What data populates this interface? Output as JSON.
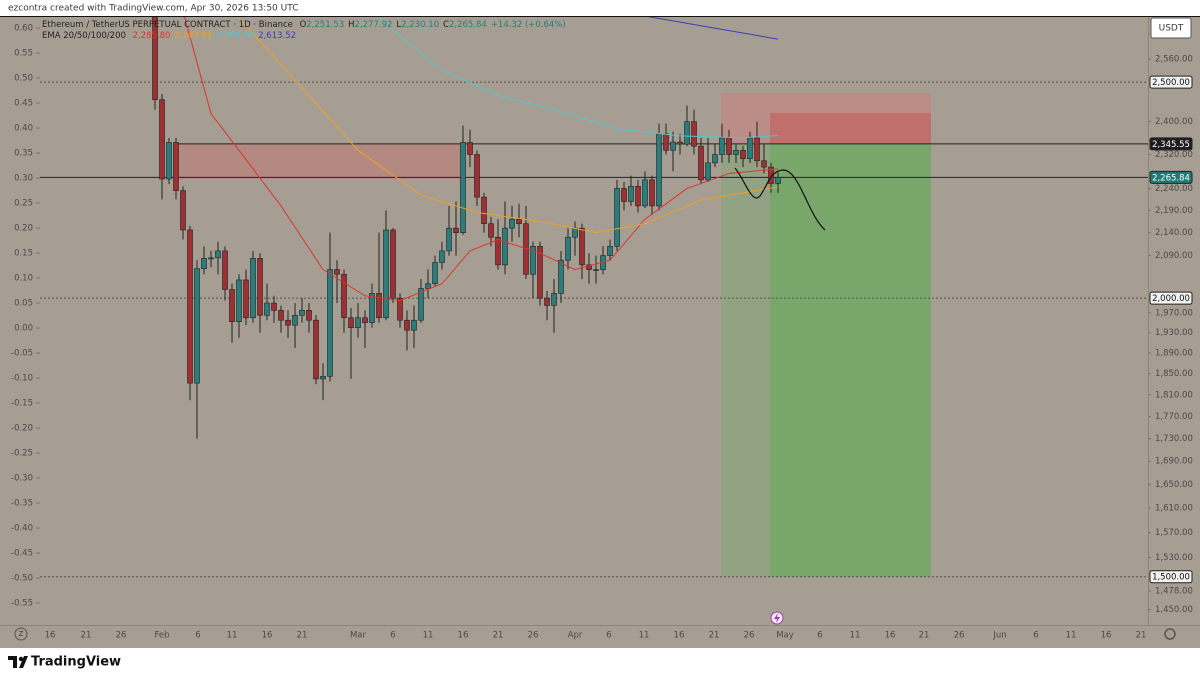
{
  "header": {
    "credit": "ezcontra created with TradingView.com, Apr 30, 2026 13:50 UTC",
    "symbol": "Ethereum / TetherUS PERPETUAL CONTRACT · 1D · Binance",
    "ohlc": [
      {
        "key": "O",
        "label": "2,251.53"
      },
      {
        "key": "H",
        "label": "2,277.92"
      },
      {
        "key": "L",
        "label": "2,230.10"
      },
      {
        "key": "C",
        "label": "2,265.84"
      }
    ],
    "change": "+14.32 (+0.64%)",
    "ema_title": "EMA 20/50/100/200"
  },
  "currency": "USDT",
  "brand": "TradingView",
  "chart_data": {
    "type": "candlestick",
    "up_color": "#2a7d7b",
    "down_color": "#9e2f33",
    "open": [
      2700,
      2455,
      2262,
      2349,
      2235,
      2146,
      1832,
      2062,
      2084,
      2085,
      2100,
      2018,
      1952,
      2038,
      1960,
      2084,
      1965,
      1990,
      1975,
      1955,
      1945,
      1965,
      1975,
      1955,
      1840,
      1845,
      2060,
      2050,
      1960,
      1940,
      1960,
      1950,
      2010,
      1960,
      2146,
      2000,
      1955,
      1935,
      1955,
      2020,
      2030,
      2075,
      2100,
      2150,
      2140,
      2349,
      2320,
      2220,
      2160,
      2130,
      2070,
      2150,
      2170,
      2160,
      2050,
      2110,
      2000,
      1985,
      2010,
      2080,
      2130,
      2150,
      2070,
      2060,
      2060,
      2090,
      2110,
      2240,
      2210,
      2245,
      2200,
      2260,
      2200,
      2370,
      2330,
      2350,
      2345,
      2400,
      2340,
      2260,
      2300,
      2320,
      2360,
      2320,
      2330,
      2310,
      2360,
      2305,
      2290,
      2251.53
    ],
    "high": [
      2720,
      2470,
      2360,
      2360,
      2245,
      2155,
      2080,
      2110,
      2100,
      2120,
      2110,
      2030,
      2050,
      2060,
      2100,
      2095,
      2030,
      2005,
      1985,
      1975,
      1990,
      2000,
      1990,
      1965,
      1870,
      2140,
      2080,
      2060,
      1980,
      1990,
      1975,
      2030,
      2140,
      2190,
      2150,
      2010,
      1975,
      1985,
      2040,
      2060,
      2090,
      2120,
      2200,
      2210,
      2390,
      2380,
      2330,
      2230,
      2175,
      2170,
      2210,
      2200,
      2205,
      2200,
      2120,
      2120,
      2015,
      2040,
      2100,
      2150,
      2165,
      2160,
      2095,
      2090,
      2110,
      2125,
      2260,
      2255,
      2270,
      2260,
      2280,
      2270,
      2395,
      2395,
      2375,
      2370,
      2440,
      2430,
      2360,
      2360,
      2345,
      2395,
      2380,
      2345,
      2340,
      2375,
      2400,
      2345,
      2300,
      2277.92
    ],
    "low": [
      2430,
      2215,
      2250,
      2215,
      2125,
      1800,
      1730,
      2050,
      2065,
      2050,
      1995,
      1910,
      1920,
      1945,
      1950,
      1930,
      1955,
      1950,
      1930,
      1920,
      1900,
      1950,
      1930,
      1830,
      1800,
      1835,
      1990,
      1930,
      1840,
      1920,
      1900,
      1940,
      1950,
      1955,
      1990,
      1940,
      1895,
      1900,
      1950,
      2000,
      2025,
      2060,
      2090,
      2090,
      2135,
      2290,
      2200,
      2140,
      2110,
      2060,
      2050,
      2120,
      2130,
      2040,
      2000,
      1985,
      1955,
      1930,
      1990,
      2060,
      2090,
      2040,
      2030,
      2030,
      2050,
      2080,
      2100,
      2190,
      2200,
      2185,
      2195,
      2180,
      2190,
      2320,
      2280,
      2320,
      2340,
      2320,
      2250,
      2255,
      2290,
      2300,
      2300,
      2300,
      2290,
      2300,
      2290,
      2275,
      2230,
      2230.1
    ],
    "close": [
      2455,
      2262,
      2349,
      2235,
      2146,
      1832,
      2062,
      2084,
      2085,
      2100,
      2018,
      1952,
      2038,
      1960,
      2084,
      1965,
      1990,
      1975,
      1955,
      1945,
      1965,
      1975,
      1955,
      1840,
      1845,
      2060,
      2050,
      1960,
      1940,
      1960,
      1950,
      2010,
      1960,
      2146,
      2000,
      1955,
      1935,
      1955,
      2020,
      2030,
      2075,
      2100,
      2150,
      2140,
      2349,
      2320,
      2220,
      2160,
      2130,
      2070,
      2150,
      2170,
      2160,
      2050,
      2110,
      2000,
      1985,
      2010,
      2080,
      2130,
      2150,
      2070,
      2060,
      2060,
      2090,
      2110,
      2240,
      2210,
      2245,
      2200,
      2260,
      2200,
      2370,
      2330,
      2350,
      2345,
      2400,
      2340,
      2260,
      2300,
      2320,
      2360,
      2320,
      2330,
      2310,
      2360,
      2305,
      2290,
      2251.53,
      2265.84
    ],
    "series": [
      {
        "color": "#d9362f",
        "value_label": "2,285.80",
        "x": [
          4,
          8,
          12,
          18,
          24,
          30,
          35,
          41,
          45,
          49,
          55,
          60,
          65,
          70,
          76,
          82,
          89
        ],
        "values": [
          2690,
          2420,
          2330,
          2200,
          2060,
          2005,
          1995,
          2030,
          2100,
          2125,
          2095,
          2060,
          2080,
          2170,
          2240,
          2275,
          2285.8
        ]
      },
      {
        "color": "#eda02a",
        "value_label": "2,243.81",
        "x": [
          12,
          20,
          29,
          38,
          46,
          55,
          63,
          70,
          78,
          89
        ],
        "values": [
          2670,
          2505,
          2330,
          2225,
          2185,
          2165,
          2140,
          2160,
          2213,
          2243.81
        ]
      },
      {
        "color": "#52c6cc",
        "value_label": "2,366.00",
        "x": [
          32,
          41,
          49,
          58,
          66,
          75,
          84,
          89
        ],
        "values": [
          2670,
          2530,
          2466,
          2425,
          2382,
          2365,
          2360,
          2366
        ]
      },
      {
        "color": "#3b3bb8",
        "value_label": "2,613.52",
        "x": [
          69,
          89
        ],
        "values": [
          2680,
          2613.52
        ]
      }
    ],
    "log_scale": true,
    "ylim": [
      1427,
      2674
    ],
    "yticks": [
      {
        "value": 2560,
        "label": "2,560.00"
      },
      {
        "value": 2400,
        "label": "2,400.00"
      },
      {
        "value": 2320,
        "label": "2,320.00"
      },
      {
        "value": 2240,
        "label": "2,240.00"
      },
      {
        "value": 2190,
        "label": "2,190.00"
      },
      {
        "value": 2140,
        "label": "2,140.00"
      },
      {
        "value": 2090,
        "label": "2,090.00"
      },
      {
        "value": 1970,
        "label": "1,970.00"
      },
      {
        "value": 1930,
        "label": "1,930.00"
      },
      {
        "value": 1890,
        "label": "1,890.00"
      },
      {
        "value": 1850,
        "label": "1,850.00"
      },
      {
        "value": 1810,
        "label": "1,810.00"
      },
      {
        "value": 1770,
        "label": "1,770.00"
      },
      {
        "value": 1730,
        "label": "1,730.00"
      },
      {
        "value": 1690,
        "label": "1,690.00"
      },
      {
        "value": 1650,
        "label": "1,650.00"
      },
      {
        "value": 1610,
        "label": "1,610.00"
      },
      {
        "value": 1570,
        "label": "1,570.00"
      },
      {
        "value": 1530,
        "label": "1,530.00"
      },
      {
        "value": 1478,
        "label": "1,478.00"
      },
      {
        "value": 1450,
        "label": "1,450.00"
      }
    ],
    "y2lim": [
      -0.594,
      0.622
    ],
    "y2ticks": [
      {
        "value": 0.6,
        "label": "0.60"
      },
      {
        "value": 0.55,
        "label": "0.55"
      },
      {
        "value": 0.5,
        "label": "0.50"
      },
      {
        "value": 0.45,
        "label": "0.45"
      },
      {
        "value": 0.4,
        "label": "0.40"
      },
      {
        "value": 0.35,
        "label": "0.35"
      },
      {
        "value": 0.3,
        "label": "0.30"
      },
      {
        "value": 0.25,
        "label": "0.25"
      },
      {
        "value": 0.2,
        "label": "0.20"
      },
      {
        "value": 0.15,
        "label": "0.15"
      },
      {
        "value": 0.1,
        "label": "0.10"
      },
      {
        "value": 0.05,
        "label": "0.05"
      },
      {
        "value": 0,
        "label": "0.00"
      },
      {
        "value": -0.05,
        "label": "-0.05"
      },
      {
        "value": -0.1,
        "label": "-0.10"
      },
      {
        "value": -0.15,
        "label": "-0.15"
      },
      {
        "value": -0.2,
        "label": "-0.20"
      },
      {
        "value": -0.25,
        "label": "-0.25"
      },
      {
        "value": -0.3,
        "label": "-0.30"
      },
      {
        "value": -0.35,
        "label": "-0.35"
      },
      {
        "value": -0.4,
        "label": "-0.40"
      },
      {
        "value": -0.45,
        "label": "-0.45"
      },
      {
        "value": -0.5,
        "label": "-0.50"
      },
      {
        "value": -0.55,
        "label": "-0.55"
      }
    ],
    "xtick_labels": [
      "16",
      "21",
      "26",
      "Feb",
      "6",
      "11",
      "16",
      "21",
      "Mar",
      "6",
      "11",
      "16",
      "21",
      "26",
      "Apr",
      "6",
      "11",
      "16",
      "21",
      "26",
      "May",
      "6",
      "11",
      "16",
      "21",
      "26",
      "Jun",
      "6",
      "11",
      "16",
      "21"
    ],
    "price_tags": [
      {
        "value": 2500,
        "label": "2,500.00",
        "color": "#f2f2f2"
      },
      {
        "value": 2345.55,
        "label": "2,345.55",
        "color": "#1e1e1e"
      },
      {
        "value": 2265.84,
        "label": "2,265.84",
        "color": "#1f7a76"
      },
      {
        "value": 2000,
        "label": "2,000.00",
        "color": "#f2f2f2"
      },
      {
        "value": 1500,
        "label": "1,500.00",
        "color": "#f2f2f2"
      }
    ],
    "zone": {
      "low": 2262,
      "high": 2345.55
    },
    "position": {
      "stop": 2472,
      "entry": 2345.55,
      "target": 1500
    }
  }
}
